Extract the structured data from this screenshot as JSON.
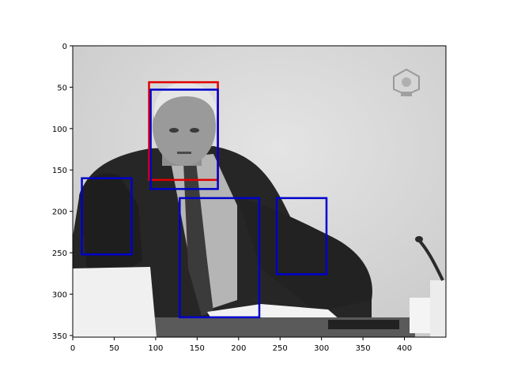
{
  "image": {
    "description_role": "grayscale photo of a man in a suit seated at a desk, with a logo watermark at top-right",
    "tones": {
      "background_wall": "#d9d9d9",
      "suit": "#262626",
      "shirt": "#b5b5b5",
      "tie": "#3b3b3b",
      "skin": "#9a9a9a",
      "hair": "#e6e6e6",
      "papers": "#f2f2f2",
      "desk": "#5a5a5a",
      "microphone": "#2b2b2b"
    },
    "watermark_icon": "court-logo-icon"
  },
  "axes": {
    "xlim": [
      0,
      450
    ],
    "ylim": [
      352,
      0
    ],
    "x_ticks": [
      0,
      50,
      100,
      150,
      200,
      250,
      300,
      350,
      400
    ],
    "y_ticks": [
      0,
      50,
      100,
      150,
      200,
      250,
      300,
      350
    ],
    "x_tick_labels": [
      "0",
      "50",
      "100",
      "150",
      "200",
      "250",
      "300",
      "350",
      "400"
    ],
    "y_tick_labels": [
      "0",
      "50",
      "100",
      "150",
      "200",
      "250",
      "300",
      "350"
    ]
  },
  "boxes": [
    {
      "label": "red-box",
      "color": "#e00000",
      "x0": 92,
      "y0": 44,
      "x1": 175,
      "y1": 162
    },
    {
      "label": "blue-box-1",
      "color": "#0000cc",
      "x0": 94,
      "y0": 53,
      "x1": 175,
      "y1": 173
    },
    {
      "label": "blue-box-2",
      "color": "#0000cc",
      "x0": 11,
      "y0": 160,
      "x1": 71,
      "y1": 252
    },
    {
      "label": "blue-box-3",
      "color": "#0000cc",
      "x0": 129,
      "y0": 184,
      "x1": 225,
      "y1": 328
    },
    {
      "label": "blue-box-4",
      "color": "#0000cc",
      "x0": 246,
      "y0": 184,
      "x1": 306,
      "y1": 276
    }
  ]
}
